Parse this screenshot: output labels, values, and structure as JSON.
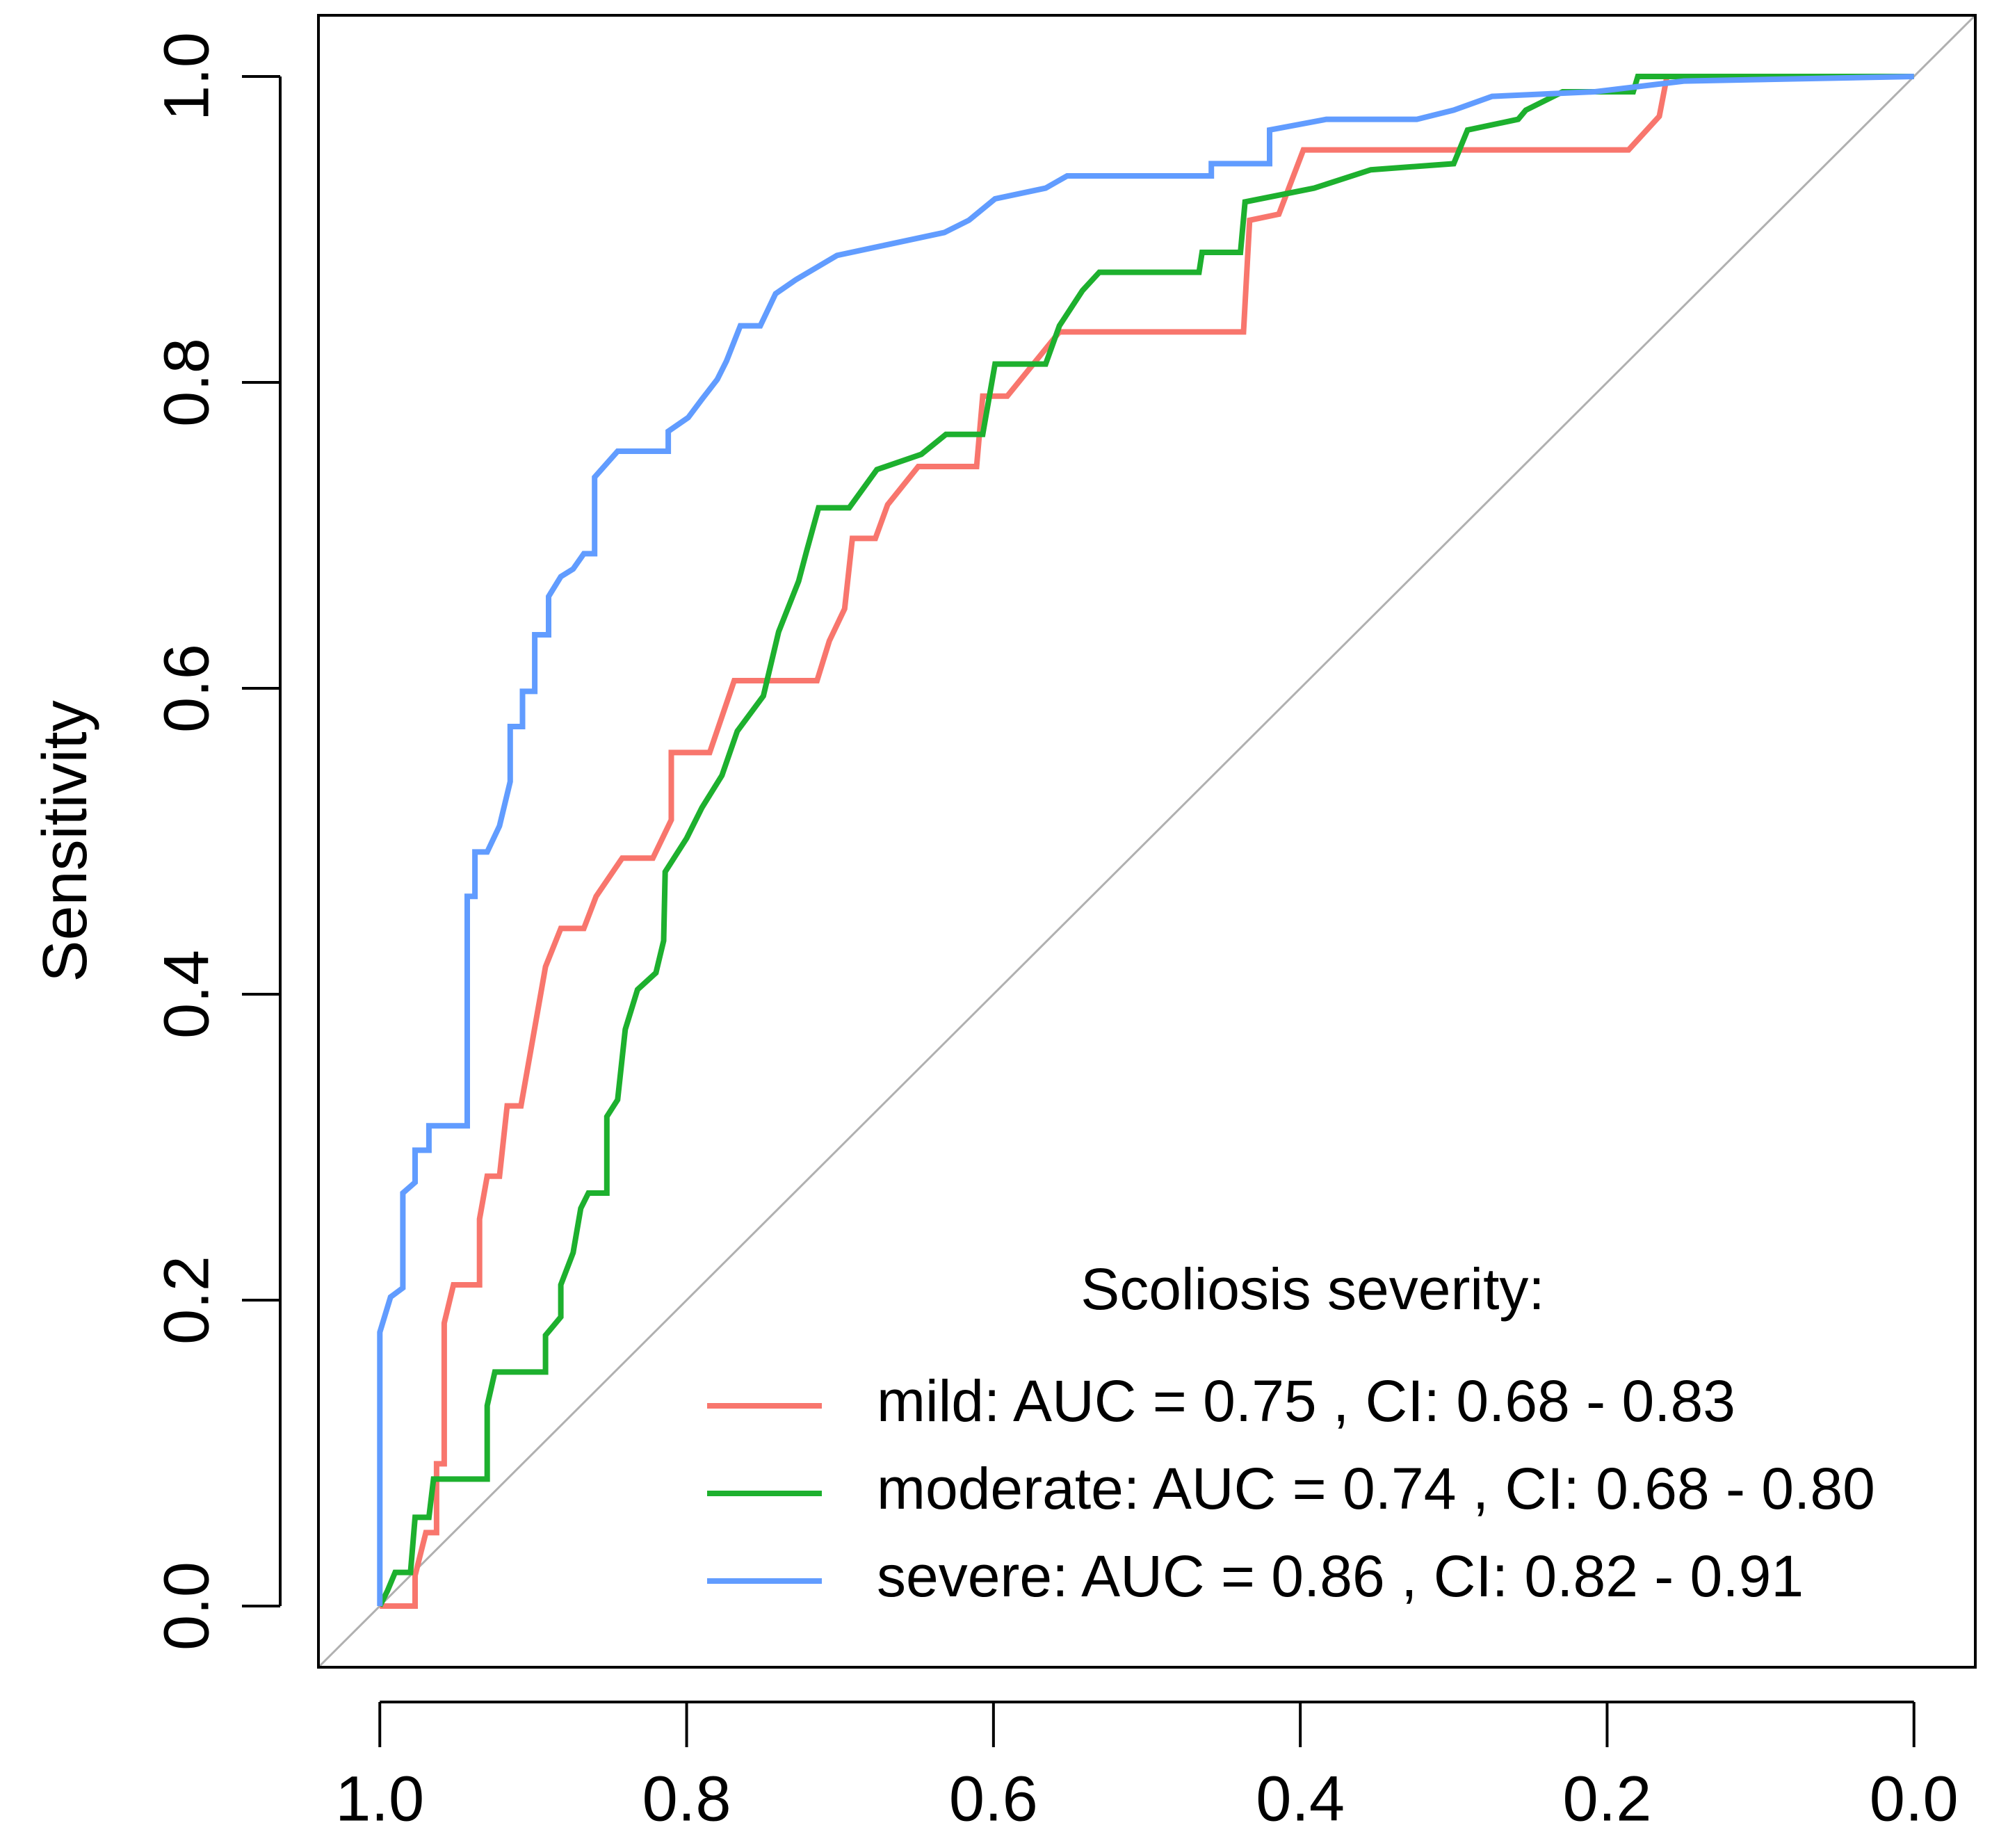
{
  "chart_data": {
    "type": "line",
    "y_label": "Sensitivity",
    "xlim": [
      1.04,
      -0.04
    ],
    "ylim": [
      -0.04,
      1.04
    ],
    "xticks": [
      {
        "value": 1,
        "label": "1.0"
      },
      0.8,
      0.6,
      0.4,
      0.2,
      {
        "value": 0,
        "label": "0.0"
      }
    ],
    "yticks": [
      {
        "value": 0,
        "label": "0.0"
      },
      0.2,
      0.4,
      0.6,
      0.8,
      {
        "value": 1,
        "label": "1.0"
      }
    ],
    "legend": {
      "title": "Scoliosis severity:",
      "position": "bottom-right"
    },
    "reference_line_color": "#b0b0b0",
    "series": [
      {
        "name": "mild: AUC = 0.75 , CI: 0.68 - 0.83",
        "color": "#F8766D",
        "x": [
          1,
          0.977,
          0.977,
          0.97,
          0.963,
          0.963,
          0.958,
          0.958,
          0.952,
          0.935,
          0.935,
          0.93,
          0.922,
          0.917,
          0.908,
          0.892,
          0.882,
          0.867,
          0.859,
          0.842,
          0.822,
          0.81,
          0.81,
          0.785,
          0.769,
          0.715,
          0.707,
          0.697,
          0.692,
          0.677,
          0.669,
          0.649,
          0.611,
          0.607,
          0.591,
          0.557,
          0.437,
          0.433,
          0.414,
          0.398,
          0.186,
          0.166,
          0.161,
          0
        ],
        "values": [
          0,
          0,
          0.02,
          0.048,
          0.048,
          0.093,
          0.093,
          0.185,
          0.21,
          0.21,
          0.253,
          0.281,
          0.281,
          0.327,
          0.327,
          0.418,
          0.443,
          0.443,
          0.464,
          0.489,
          0.489,
          0.514,
          0.558,
          0.558,
          0.605,
          0.605,
          0.631,
          0.652,
          0.698,
          0.698,
          0.72,
          0.745,
          0.745,
          0.791,
          0.791,
          0.833,
          0.833,
          0.906,
          0.91,
          0.952,
          0.952,
          0.974,
          1.0,
          1.0
        ]
      },
      {
        "name": "moderate: AUC = 0.74 , CI: 0.68 - 0.80",
        "color": "#1DB02E",
        "x": [
          1,
          0.995,
          0.99,
          0.98,
          0.977,
          0.968,
          0.965,
          0.93,
          0.93,
          0.925,
          0.892,
          0.892,
          0.882,
          0.882,
          0.874,
          0.869,
          0.864,
          0.852,
          0.852,
          0.845,
          0.84,
          0.832,
          0.82,
          0.815,
          0.814,
          0.8,
          0.79,
          0.777,
          0.767,
          0.75,
          0.74,
          0.727,
          0.722,
          0.714,
          0.694,
          0.676,
          0.647,
          0.631,
          0.607,
          0.599,
          0.566,
          0.557,
          0.542,
          0.531,
          0.466,
          0.464,
          0.439,
          0.436,
          0.391,
          0.354,
          0.3,
          0.291,
          0.258,
          0.253,
          0.229,
          0.183,
          0.18,
          0
        ],
        "values": [
          0,
          0.01,
          0.022,
          0.022,
          0.058,
          0.058,
          0.083,
          0.083,
          0.131,
          0.153,
          0.153,
          0.177,
          0.189,
          0.21,
          0.231,
          0.26,
          0.27,
          0.27,
          0.32,
          0.331,
          0.377,
          0.403,
          0.414,
          0.435,
          0.48,
          0.502,
          0.522,
          0.543,
          0.572,
          0.595,
          0.637,
          0.67,
          0.689,
          0.718,
          0.718,
          0.743,
          0.753,
          0.766,
          0.766,
          0.812,
          0.812,
          0.837,
          0.86,
          0.872,
          0.872,
          0.885,
          0.885,
          0.918,
          0.927,
          0.939,
          0.943,
          0.965,
          0.972,
          0.978,
          0.99,
          0.99,
          1.0,
          1.0
        ]
      },
      {
        "name": "severe: AUC = 0.86 , CI: 0.82 - 0.91",
        "color": "#619CFF",
        "x": [
          1,
          1,
          0.993,
          0.985,
          0.985,
          0.977,
          0.977,
          0.968,
          0.968,
          0.943,
          0.943,
          0.938,
          0.938,
          0.93,
          0.922,
          0.915,
          0.915,
          0.907,
          0.907,
          0.899,
          0.899,
          0.89,
          0.89,
          0.882,
          0.874,
          0.867,
          0.86,
          0.86,
          0.845,
          0.812,
          0.812,
          0.799,
          0.79,
          0.78,
          0.774,
          0.765,
          0.752,
          0.742,
          0.729,
          0.702,
          0.674,
          0.632,
          0.616,
          0.599,
          0.566,
          0.552,
          0.458,
          0.458,
          0.42,
          0.42,
          0.383,
          0.324,
          0.3,
          0.275,
          0.208,
          0.15,
          0
        ],
        "values": [
          0,
          0.179,
          0.202,
          0.208,
          0.27,
          0.277,
          0.298,
          0.298,
          0.314,
          0.314,
          0.464,
          0.464,
          0.493,
          0.493,
          0.51,
          0.539,
          0.575,
          0.575,
          0.598,
          0.598,
          0.635,
          0.635,
          0.66,
          0.673,
          0.678,
          0.688,
          0.688,
          0.738,
          0.755,
          0.755,
          0.768,
          0.777,
          0.789,
          0.802,
          0.814,
          0.837,
          0.837,
          0.858,
          0.867,
          0.883,
          0.889,
          0.898,
          0.906,
          0.92,
          0.927,
          0.935,
          0.935,
          0.943,
          0.943,
          0.965,
          0.972,
          0.972,
          0.978,
          0.987,
          0.99,
          0.997,
          1.0
        ]
      }
    ]
  }
}
